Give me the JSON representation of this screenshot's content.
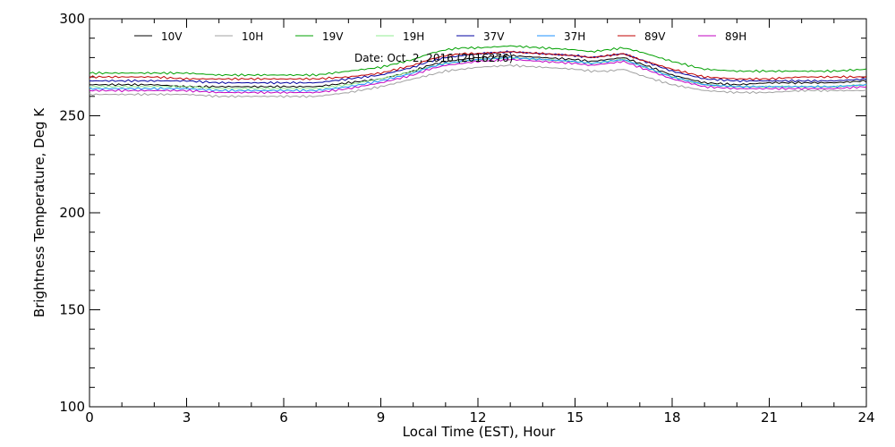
{
  "chart_data": {
    "type": "line",
    "title": "",
    "annotation": "Date: Oct  2, 2016 (2016276)",
    "xlabel": "Local Time (EST), Hour",
    "ylabel": "Brightness Temperature, Deg K",
    "xlim": [
      0,
      24
    ],
    "ylim": [
      100,
      300
    ],
    "xticks": [
      0,
      3,
      6,
      9,
      12,
      15,
      18,
      21,
      24
    ],
    "xtick_labels": [
      "0",
      "3",
      "6",
      "9",
      "12",
      "15",
      "18",
      "21",
      "24"
    ],
    "yticks": [
      100,
      150,
      200,
      250,
      300
    ],
    "ytick_labels": [
      "100",
      "150",
      "200",
      "250",
      "300"
    ],
    "legend_position": "top",
    "x": [
      0,
      1,
      2,
      3,
      4,
      5,
      6,
      7,
      8,
      9,
      10,
      10.5,
      11,
      11.5,
      12,
      13,
      14,
      15,
      15.5,
      16,
      16.5,
      17,
      18,
      19,
      20,
      21,
      22,
      23,
      24
    ],
    "series": [
      {
        "name": "10V",
        "color": "#000000",
        "values": [
          266,
          266,
          266,
          265,
          265,
          265,
          265,
          265,
          267,
          269,
          273,
          276,
          278,
          279,
          280,
          281,
          280,
          279,
          278,
          279,
          280,
          277,
          271,
          267,
          266,
          267,
          267,
          267,
          268
        ]
      },
      {
        "name": "10H",
        "color": "#a0a0a0",
        "values": [
          261,
          261,
          261,
          261,
          260,
          260,
          260,
          260,
          262,
          265,
          269,
          271,
          273,
          274,
          275,
          276,
          275,
          274,
          273,
          273,
          274,
          271,
          266,
          263,
          262,
          262,
          263,
          263,
          263
        ]
      },
      {
        "name": "19V",
        "color": "#00a000",
        "values": [
          272,
          272,
          272,
          272,
          271,
          271,
          271,
          271,
          273,
          275,
          279,
          282,
          284,
          285,
          285,
          286,
          285,
          284,
          283,
          284,
          285,
          283,
          278,
          274,
          273,
          273,
          273,
          273,
          274
        ]
      },
      {
        "name": "19H",
        "color": "#90ee90",
        "values": [
          265,
          265,
          265,
          265,
          264,
          264,
          264,
          264,
          266,
          269,
          273,
          275,
          277,
          278,
          279,
          280,
          279,
          278,
          277,
          278,
          279,
          276,
          270,
          266,
          265,
          265,
          265,
          265,
          266
        ]
      },
      {
        "name": "37V",
        "color": "#0000a0",
        "values": [
          268,
          268,
          268,
          268,
          267,
          267,
          267,
          267,
          269,
          271,
          275,
          278,
          280,
          281,
          282,
          283,
          282,
          281,
          280,
          281,
          282,
          279,
          273,
          269,
          268,
          268,
          268,
          268,
          269
        ]
      },
      {
        "name": "37H",
        "color": "#1e90ff",
        "values": [
          264,
          264,
          264,
          264,
          263,
          263,
          263,
          263,
          265,
          268,
          272,
          275,
          277,
          278,
          279,
          280,
          279,
          278,
          277,
          278,
          279,
          276,
          270,
          266,
          265,
          265,
          265,
          265,
          266
        ]
      },
      {
        "name": "89V",
        "color": "#c00000",
        "values": [
          270,
          270,
          270,
          269,
          269,
          269,
          269,
          269,
          270,
          272,
          276,
          279,
          281,
          282,
          282,
          283,
          282,
          281,
          280,
          281,
          282,
          279,
          274,
          270,
          269,
          269,
          270,
          270,
          270
        ]
      },
      {
        "name": "89H",
        "color": "#c000c0",
        "values": [
          263,
          263,
          263,
          263,
          262,
          262,
          262,
          262,
          264,
          267,
          271,
          274,
          276,
          277,
          278,
          279,
          278,
          277,
          276,
          277,
          278,
          275,
          269,
          265,
          264,
          264,
          264,
          264,
          265
        ]
      }
    ]
  }
}
